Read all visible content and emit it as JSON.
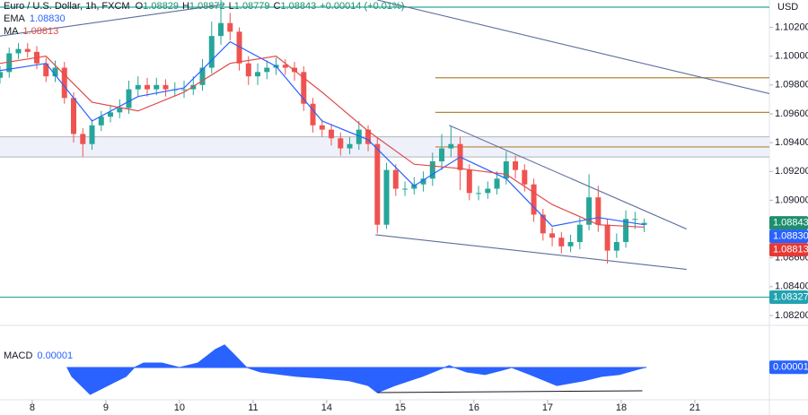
{
  "header": {
    "symbol": "Euro / U.S. Dollar, 1h, FXCM",
    "keys": [
      "O",
      "H",
      "L",
      "C"
    ],
    "change": "+0.00014 (+0.01%)"
  },
  "chart_data": [
    {
      "type": "candlestick",
      "currency": "USD",
      "xlim": [
        0,
        83.6
      ],
      "xticks": [
        {
          "value": 3.5,
          "label": "8"
        },
        {
          "value": 11.5,
          "label": "9"
        },
        {
          "value": 19.5,
          "label": "10"
        },
        {
          "value": 27.5,
          "label": "11"
        },
        {
          "value": 35.5,
          "label": "14"
        },
        {
          "value": 43.5,
          "label": "15"
        },
        {
          "value": 51.5,
          "label": "16"
        },
        {
          "value": 59.5,
          "label": "17"
        },
        {
          "value": 67.5,
          "label": "18"
        },
        {
          "value": 75.5,
          "label": "21"
        }
      ],
      "ylim": [
        1.0815,
        1.1039
      ],
      "yticks": [
        {
          "value": 1.102,
          "label": "1.10200"
        },
        {
          "value": 1.1,
          "label": "1.10000"
        },
        {
          "value": 1.098,
          "label": "1.09800"
        },
        {
          "value": 1.096,
          "label": "1.09600"
        },
        {
          "value": 1.094,
          "label": "1.09400"
        },
        {
          "value": 1.092,
          "label": "1.09200"
        },
        {
          "value": 1.09,
          "label": "1.09000"
        },
        {
          "value": 1.088,
          "label": "1.08800"
        },
        {
          "value": 1.086,
          "label": "1.08600"
        },
        {
          "value": 1.084,
          "label": "1.08400"
        },
        {
          "value": 1.082,
          "label": "1.08200"
        }
      ],
      "up_color": "#26a69a",
      "down_color": "#ef5350",
      "open": [
        1.0985,
        1.0989,
        1.1002,
        1.1005,
        1.1003,
        1.0995,
        1.0986,
        1.0992,
        1.0971,
        1.0946,
        1.0939,
        1.0952,
        1.0958,
        1.0961,
        1.0964,
        1.0977,
        1.098,
        1.0977,
        1.098,
        1.0977,
        1.0977,
        1.0977,
        1.098,
        1.0992,
        1.1014,
        1.1023,
        1.1017,
        1.0995,
        1.0986,
        1.0989,
        1.0992,
        1.0994,
        1.0992,
        1.0989,
        1.0967,
        1.0952,
        1.0949,
        1.0943,
        1.0936,
        1.0939,
        1.0949,
        1.0939,
        1.0883,
        1.0921,
        1.0908,
        1.0908,
        1.0911,
        1.0915,
        1.0927,
        1.0936,
        1.0939,
        1.0921,
        1.0905,
        1.0905,
        1.0908,
        1.0915,
        1.0927,
        1.0921,
        1.0911,
        1.089,
        1.0877,
        1.0874,
        1.0868,
        1.0871,
        1.0883,
        1.0902,
        1.0883,
        1.0865,
        1.0871,
        1.0887,
        1.08829
      ],
      "high": [
        1.0993,
        1.1006,
        1.1009,
        1.1009,
        1.1007,
        1.0999,
        1.0997,
        1.0996,
        1.0975,
        1.095,
        1.0956,
        1.0962,
        1.0966,
        1.097,
        1.0983,
        1.0986,
        1.0985,
        1.0985,
        1.0984,
        1.0982,
        1.0983,
        1.0986,
        1.0998,
        1.1024,
        1.1039,
        1.103,
        1.102,
        1.1,
        1.0995,
        1.0997,
        1.0999,
        1.0998,
        1.0996,
        1.0993,
        1.0971,
        1.0956,
        1.0953,
        1.0947,
        1.0944,
        1.0955,
        1.0952,
        1.0943,
        1.0926,
        1.0925,
        1.0913,
        1.0916,
        1.092,
        1.0933,
        1.0946,
        1.0951,
        1.0944,
        1.0925,
        1.091,
        1.0913,
        1.092,
        1.0934,
        1.0931,
        1.0925,
        1.0915,
        1.0894,
        1.0881,
        1.0878,
        1.0876,
        1.0888,
        1.0918,
        1.091,
        1.0887,
        1.0877,
        1.0893,
        1.0892,
        1.08872
      ],
      "low": [
        1.0981,
        1.0985,
        1.0998,
        1.0999,
        1.0991,
        1.0982,
        1.0982,
        1.0967,
        1.094,
        1.093,
        1.0935,
        1.0948,
        1.0954,
        1.0957,
        1.096,
        1.0972,
        1.0972,
        1.0973,
        1.0972,
        1.0972,
        1.0971,
        1.0973,
        1.0976,
        1.0988,
        1.1008,
        1.1011,
        1.099,
        1.098,
        1.098,
        1.0984,
        1.0987,
        1.0987,
        1.0983,
        1.0962,
        1.0947,
        1.0944,
        1.0938,
        1.0931,
        1.0932,
        1.0935,
        1.0934,
        1.0877,
        1.088,
        1.0903,
        1.0903,
        1.0904,
        1.0906,
        1.091,
        1.0921,
        1.093,
        1.0907,
        1.09,
        1.09,
        1.0901,
        1.0904,
        1.0911,
        1.0915,
        1.0906,
        1.0885,
        1.0872,
        1.0868,
        1.0863,
        1.0864,
        1.0866,
        1.0879,
        1.0878,
        1.0856,
        1.086,
        1.0867,
        1.088,
        1.08779
      ],
      "close": [
        1.0989,
        1.1002,
        1.1005,
        1.1003,
        1.0995,
        1.0986,
        1.0992,
        1.0971,
        1.0946,
        1.0939,
        1.0952,
        1.0958,
        1.0961,
        1.0964,
        1.0977,
        1.098,
        1.0977,
        1.098,
        1.0977,
        1.0977,
        1.0977,
        1.098,
        1.0992,
        1.1014,
        1.1023,
        1.1017,
        1.0995,
        1.0986,
        1.0989,
        1.0992,
        1.0994,
        1.0992,
        1.0989,
        1.0967,
        1.0952,
        1.0949,
        1.0943,
        1.0936,
        1.0939,
        1.0949,
        1.0939,
        1.0883,
        1.0921,
        1.0908,
        1.0908,
        1.0911,
        1.0915,
        1.0927,
        1.0936,
        1.0939,
        1.0921,
        1.0905,
        1.0905,
        1.0908,
        1.0915,
        1.0927,
        1.0921,
        1.0911,
        1.089,
        1.0877,
        1.0874,
        1.0868,
        1.0871,
        1.0883,
        1.0902,
        1.0883,
        1.0865,
        1.0871,
        1.0887,
        1.0887,
        1.08843
      ],
      "series": [
        {
          "name": "EMA",
          "color": "#2962ff",
          "x": [
            0,
            5,
            10,
            15,
            20,
            25,
            30,
            35,
            40,
            45,
            50,
            55,
            60,
            65,
            70
          ],
          "values": [
            1.099,
            1.0995,
            1.0955,
            1.0972,
            1.0978,
            1.101,
            1.0993,
            1.0955,
            1.0942,
            1.091,
            1.093,
            1.0915,
            1.0882,
            1.0888,
            1.0883
          ]
        },
        {
          "name": "MA",
          "color": "#e04b4b",
          "x": [
            0,
            5,
            10,
            15,
            20,
            25,
            30,
            35,
            40,
            45,
            50,
            55,
            60,
            65,
            70
          ],
          "values": [
            1.0995,
            1.1,
            1.0968,
            1.0962,
            1.0975,
            1.0995,
            1.1,
            1.0975,
            1.0948,
            1.0925,
            1.0922,
            1.0918,
            1.0897,
            1.0883,
            1.08813
          ]
        }
      ],
      "zone": {
        "from": 1.093,
        "to": 1.0944
      },
      "levels": [
        {
          "value": 1.1034,
          "color": "#26a69a",
          "from": 0
        },
        {
          "value": 1.0985,
          "color": "#b5873a",
          "from": 47.3
        },
        {
          "value": 1.0961,
          "color": "#b5873a",
          "from": 47.3
        },
        {
          "value": 1.0937,
          "color": "#b5873a",
          "from": 47.3
        },
        {
          "value": 1.08327,
          "color": "#26a69a",
          "from": 0
        }
      ],
      "trendlines": [
        {
          "x": [
            0,
            24.4
          ],
          "values": [
            1.1014,
            1.1036
          ]
        },
        {
          "x": [
            41,
            83.6
          ],
          "values": [
            1.1039,
            1.0974
          ]
        },
        {
          "x": [
            48.8,
            74.6
          ],
          "values": [
            1.0952,
            1.088
          ]
        },
        {
          "x": [
            40.8,
            74.6
          ],
          "values": [
            1.0876,
            1.0852
          ]
        }
      ],
      "price_tags": [
        {
          "value": 1.08843,
          "label": "1.08843",
          "color": "#1e8f6e"
        },
        {
          "value": 1.0883,
          "label": "1.08830",
          "color": "#2962ff"
        },
        {
          "value": 1.08813,
          "label": "1.08813",
          "color": "#e53935"
        },
        {
          "value": 1.08327,
          "label": "1.08327",
          "color": "#22a2b0"
        }
      ]
    },
    {
      "type": "area",
      "title": "MACD",
      "color": "#2962ff",
      "x": [
        7.3,
        7.8,
        9.8,
        11.7,
        13.7,
        14.6,
        15.6,
        17.6,
        19.5,
        21.5,
        23.4,
        24.4,
        25.4,
        26.8,
        28.3,
        32.2,
        35.1,
        38,
        40,
        41,
        42.9,
        45.9,
        47.8,
        48.8,
        50.7,
        52.7,
        54.6,
        55.6,
        57.6,
        60.5,
        63.4,
        65.4,
        67.3,
        69.3,
        70.2
      ],
      "values": [
        0,
        -0.00034,
        -0.00103,
        -0.00069,
        -0.00034,
        0,
        0.00017,
        0.00017,
        0,
        0.00017,
        0.00069,
        0.00086,
        0.00051,
        0,
        -0.00017,
        -0.00034,
        -0.00041,
        -0.00051,
        -0.00069,
        -0.00096,
        -0.00069,
        -0.00034,
        -7e-05,
        7e-05,
        -0.00017,
        -0.00027,
        -0.0001,
        0,
        -0.00027,
        -0.00069,
        -0.00051,
        -0.00034,
        -0.00027,
        -7e-05,
        1e-05
      ],
      "ylim": [
        -0.0012,
        0.0012
      ],
      "tag": {
        "value": 1e-05,
        "label": "0.00001"
      },
      "trendline": {
        "x": [
          41,
          69.8
        ],
        "values": [
          -0.00096,
          -0.00089
        ]
      }
    }
  ]
}
